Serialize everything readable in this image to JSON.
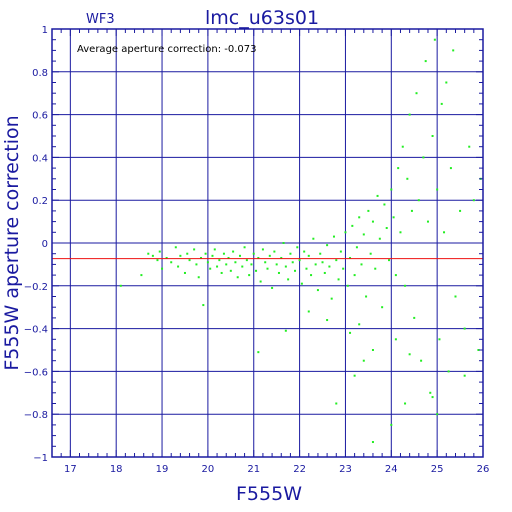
{
  "chart_data": {
    "type": "scatter",
    "title": "lmc_u63s01",
    "tag": "WF3",
    "annotation": "Average aperture correction: -0.073",
    "xlabel": "F555W",
    "ylabel": "F555W aperture correction",
    "xlim": [
      16.6,
      26.0
    ],
    "ylim": [
      -1.0,
      1.0
    ],
    "x_ticks": [
      17,
      18,
      19,
      20,
      21,
      22,
      23,
      24,
      25,
      26
    ],
    "y_ticks": [
      -1,
      -0.8,
      -0.6,
      -0.4,
      -0.2,
      0,
      0.2,
      0.4,
      0.6,
      0.8,
      1
    ],
    "x_tick_labels": [
      "17",
      "18",
      "19",
      "20",
      "21",
      "22",
      "23",
      "24",
      "25",
      "26"
    ],
    "y_tick_labels": [
      "−1",
      "−0.8",
      "−0.6",
      "−0.4",
      "−0.2",
      "0",
      "0.2",
      "0.4",
      "0.6",
      "0.8",
      "1"
    ],
    "average_line": -0.073,
    "grid": true,
    "colors": {
      "points": "#22ee22",
      "average_line": "#ee1111",
      "grid": "#1a1aa0",
      "axis": "#1a1aa0"
    },
    "points": [
      [
        18.1,
        -0.2
      ],
      [
        18.55,
        -0.15
      ],
      [
        18.7,
        -0.05
      ],
      [
        18.8,
        -0.06
      ],
      [
        18.9,
        -0.08
      ],
      [
        19.0,
        -0.12
      ],
      [
        18.95,
        -0.04
      ],
      [
        19.1,
        -0.07
      ],
      [
        19.2,
        -0.09
      ],
      [
        19.3,
        -0.02
      ],
      [
        19.35,
        -0.11
      ],
      [
        19.4,
        -0.06
      ],
      [
        19.5,
        -0.14
      ],
      [
        19.55,
        -0.05
      ],
      [
        19.6,
        -0.08
      ],
      [
        19.7,
        -0.03
      ],
      [
        19.75,
        -0.1
      ],
      [
        19.8,
        -0.16
      ],
      [
        19.85,
        -0.07
      ],
      [
        19.9,
        -0.29
      ],
      [
        19.95,
        -0.05
      ],
      [
        20.0,
        -0.09
      ],
      [
        20.05,
        -0.12
      ],
      [
        20.1,
        -0.06
      ],
      [
        20.15,
        -0.03
      ],
      [
        20.2,
        -0.11
      ],
      [
        20.25,
        -0.08
      ],
      [
        20.3,
        -0.14
      ],
      [
        20.35,
        -0.05
      ],
      [
        20.4,
        -0.1
      ],
      [
        20.45,
        -0.07
      ],
      [
        20.5,
        -0.13
      ],
      [
        20.55,
        -0.04
      ],
      [
        20.6,
        -0.09
      ],
      [
        20.65,
        -0.16
      ],
      [
        20.7,
        -0.06
      ],
      [
        20.75,
        -0.11
      ],
      [
        20.8,
        -0.02
      ],
      [
        20.85,
        -0.08
      ],
      [
        20.9,
        -0.15
      ],
      [
        20.95,
        -0.1
      ],
      [
        21.0,
        -0.05
      ],
      [
        21.05,
        -0.13
      ],
      [
        21.1,
        -0.07
      ],
      [
        21.15,
        -0.18
      ],
      [
        21.2,
        -0.03
      ],
      [
        21.25,
        -0.09
      ],
      [
        21.3,
        -0.12
      ],
      [
        21.35,
        -0.06
      ],
      [
        21.4,
        -0.21
      ],
      [
        21.45,
        -0.04
      ],
      [
        21.5,
        -0.1
      ],
      [
        21.55,
        -0.14
      ],
      [
        21.6,
        -0.07
      ],
      [
        21.65,
        0.0
      ],
      [
        21.7,
        -0.11
      ],
      [
        21.75,
        -0.17
      ],
      [
        21.8,
        -0.05
      ],
      [
        21.85,
        -0.09
      ],
      [
        21.9,
        -0.13
      ],
      [
        21.95,
        -0.02
      ],
      [
        22.0,
        -0.08
      ],
      [
        22.05,
        -0.19
      ],
      [
        22.1,
        -0.04
      ],
      [
        22.15,
        -0.12
      ],
      [
        22.2,
        -0.06
      ],
      [
        22.25,
        -0.15
      ],
      [
        22.3,
        0.02
      ],
      [
        22.35,
        -0.1
      ],
      [
        22.4,
        -0.22
      ],
      [
        22.45,
        -0.05
      ],
      [
        22.5,
        -0.09
      ],
      [
        22.55,
        -0.14
      ],
      [
        22.6,
        -0.01
      ],
      [
        22.65,
        -0.11
      ],
      [
        22.7,
        -0.26
      ],
      [
        22.75,
        0.03
      ],
      [
        22.8,
        -0.08
      ],
      [
        22.85,
        -0.17
      ],
      [
        22.9,
        -0.04
      ],
      [
        22.95,
        -0.12
      ],
      [
        23.0,
        0.05
      ],
      [
        23.05,
        -0.2
      ],
      [
        23.1,
        -0.07
      ],
      [
        23.15,
        0.08
      ],
      [
        23.2,
        -0.15
      ],
      [
        23.25,
        -0.02
      ],
      [
        23.3,
        0.12
      ],
      [
        23.35,
        -0.1
      ],
      [
        23.4,
        0.04
      ],
      [
        23.45,
        -0.25
      ],
      [
        23.5,
        0.15
      ],
      [
        23.55,
        -0.05
      ],
      [
        23.6,
        0.1
      ],
      [
        23.65,
        -0.12
      ],
      [
        23.7,
        0.22
      ],
      [
        23.75,
        0.02
      ],
      [
        23.8,
        -0.3
      ],
      [
        23.85,
        0.18
      ],
      [
        23.9,
        0.07
      ],
      [
        23.95,
        -0.08
      ],
      [
        24.0,
        0.25
      ],
      [
        24.05,
        0.12
      ],
      [
        24.1,
        -0.15
      ],
      [
        24.15,
        0.35
      ],
      [
        24.2,
        0.05
      ],
      [
        24.25,
        0.45
      ],
      [
        24.3,
        -0.2
      ],
      [
        24.35,
        0.3
      ],
      [
        24.4,
        0.6
      ],
      [
        24.45,
        0.15
      ],
      [
        24.5,
        -0.35
      ],
      [
        24.55,
        0.7
      ],
      [
        24.6,
        0.2
      ],
      [
        24.65,
        -0.55
      ],
      [
        24.7,
        0.4
      ],
      [
        24.75,
        0.85
      ],
      [
        24.8,
        0.1
      ],
      [
        24.85,
        -0.7
      ],
      [
        24.9,
        0.5
      ],
      [
        24.95,
        0.95
      ],
      [
        25.0,
        0.25
      ],
      [
        25.05,
        -0.45
      ],
      [
        25.1,
        0.65
      ],
      [
        25.15,
        0.05
      ],
      [
        25.2,
        0.75
      ],
      [
        25.25,
        -0.6
      ],
      [
        25.3,
        0.35
      ],
      [
        25.35,
        0.9
      ],
      [
        25.4,
        -0.25
      ],
      [
        25.5,
        0.15
      ],
      [
        25.6,
        -0.4
      ],
      [
        25.7,
        0.45
      ],
      [
        25.8,
        0.2
      ],
      [
        25.9,
        -0.5
      ],
      [
        25.95,
        0.3
      ],
      [
        24.0,
        -0.85
      ],
      [
        24.3,
        -0.75
      ],
      [
        23.6,
        -0.93
      ],
      [
        24.9,
        -0.72
      ],
      [
        25.0,
        -0.8
      ],
      [
        23.2,
        -0.62
      ],
      [
        23.4,
        -0.55
      ],
      [
        23.6,
        -0.5
      ],
      [
        22.8,
        -0.75
      ],
      [
        21.1,
        -0.51
      ],
      [
        21.7,
        -0.41
      ],
      [
        22.2,
        -0.32
      ],
      [
        22.6,
        -0.36
      ],
      [
        23.1,
        -0.42
      ],
      [
        23.3,
        -0.38
      ],
      [
        24.1,
        -0.45
      ],
      [
        24.4,
        -0.52
      ],
      [
        25.6,
        -0.62
      ]
    ]
  }
}
